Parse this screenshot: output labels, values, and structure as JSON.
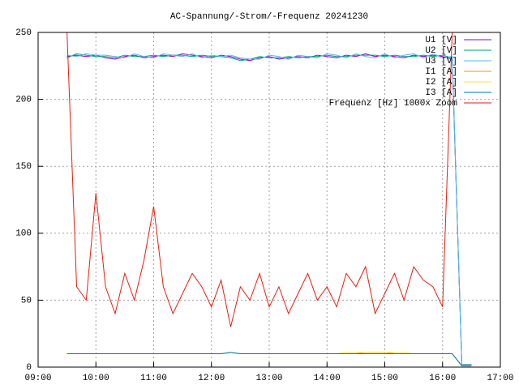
{
  "chart_data": {
    "type": "line",
    "title": "AC-Spannung/-Strom/-Frequenz 20241230",
    "x": [
      9.5,
      9.667,
      9.833,
      10,
      10.167,
      10.333,
      10.5,
      10.667,
      10.833,
      11,
      11.167,
      11.333,
      11.5,
      11.667,
      11.833,
      12,
      12.167,
      12.333,
      12.5,
      12.667,
      12.833,
      13,
      13.167,
      13.333,
      13.5,
      13.667,
      13.833,
      14,
      14.167,
      14.333,
      14.5,
      14.667,
      14.833,
      15,
      15.167,
      15.333,
      15.5,
      15.667,
      15.833,
      16,
      16.167,
      16.333,
      16.5
    ],
    "series": [
      {
        "name": "U1 [V]",
        "color": "#9400d3",
        "values": [
          232,
          233,
          232,
          233,
          231,
          230,
          232,
          233,
          231,
          232,
          233,
          232,
          234,
          233,
          232,
          231,
          233,
          232,
          230,
          229,
          231,
          232,
          230,
          231,
          232,
          231,
          233,
          232,
          231,
          233,
          232,
          234,
          232,
          233,
          232,
          231,
          233,
          232,
          233,
          232,
          230,
          2,
          2
        ]
      },
      {
        "name": "U2 [V]",
        "color": "#009e73",
        "values": [
          231,
          234,
          233,
          232,
          232,
          231,
          233,
          232,
          232,
          233,
          232,
          233,
          233,
          232,
          233,
          232,
          232,
          231,
          229,
          230,
          232,
          231,
          231,
          232,
          231,
          232,
          232,
          233,
          232,
          232,
          233,
          233,
          233,
          232,
          233,
          232,
          232,
          233,
          232,
          233,
          231,
          2,
          2
        ]
      },
      {
        "name": "U3 [V]",
        "color": "#56b4e9",
        "values": [
          233,
          232,
          234,
          233,
          233,
          232,
          231,
          234,
          232,
          231,
          234,
          233,
          232,
          234,
          231,
          233,
          232,
          233,
          231,
          230,
          230,
          233,
          232,
          230,
          233,
          232,
          231,
          234,
          233,
          231,
          234,
          232,
          231,
          234,
          231,
          233,
          234,
          231,
          234,
          231,
          232,
          2,
          2
        ]
      },
      {
        "name": "I1 [A]",
        "color": "#e69f00",
        "values": [
          10,
          10,
          10,
          10,
          10,
          10,
          10,
          10,
          10,
          10,
          10,
          10,
          10,
          10,
          10,
          10,
          10,
          11,
          10,
          10,
          10,
          10,
          10,
          10,
          10,
          10,
          10,
          10,
          10,
          10,
          10,
          11,
          11,
          11,
          10,
          10,
          10,
          10,
          10,
          10,
          10,
          1,
          1
        ]
      },
      {
        "name": "I2 [A]",
        "color": "#f0e442",
        "values": [
          10,
          10,
          10,
          10,
          10,
          10,
          10,
          10,
          10,
          10,
          10,
          10,
          10,
          10,
          10,
          10,
          10,
          11,
          10,
          10,
          10,
          10,
          10,
          10,
          10,
          10,
          10,
          10,
          10,
          11,
          11,
          11,
          11,
          11,
          11,
          11,
          10,
          10,
          10,
          10,
          10,
          1,
          1
        ]
      },
      {
        "name": "I3 [A]",
        "color": "#0072b2",
        "values": [
          10,
          10,
          10,
          10,
          10,
          10,
          10,
          10,
          10,
          10,
          10,
          10,
          10,
          10,
          10,
          10,
          10,
          11,
          10,
          10,
          10,
          10,
          10,
          10,
          10,
          10,
          10,
          10,
          10,
          10,
          10,
          10,
          10,
          10,
          10,
          10,
          10,
          10,
          10,
          10,
          10,
          1,
          1
        ]
      },
      {
        "name": "Frequenz [Hz] 1000x Zoom",
        "color": "#e51e10",
        "values": [
          250,
          60,
          50,
          130,
          60,
          40,
          70,
          50,
          80,
          120,
          60,
          40,
          55,
          70,
          60,
          45,
          65,
          30,
          60,
          50,
          70,
          45,
          60,
          40,
          55,
          70,
          50,
          60,
          45,
          70,
          60,
          75,
          40,
          55,
          70,
          50,
          75,
          65,
          60,
          45,
          250,
          null,
          null
        ]
      }
    ],
    "xlim": [
      9,
      17
    ],
    "xticks": [
      {
        "value": 9,
        "label": "09:00"
      },
      {
        "value": 10,
        "label": "10:00"
      },
      {
        "value": 11,
        "label": "11:00"
      },
      {
        "value": 12,
        "label": "12:00"
      },
      {
        "value": 13,
        "label": "13:00"
      },
      {
        "value": 14,
        "label": "14:00"
      },
      {
        "value": 15,
        "label": "15:00"
      },
      {
        "value": 16,
        "label": "16:00"
      },
      {
        "value": 17,
        "label": "17:00"
      }
    ],
    "ylim": [
      0,
      250
    ],
    "yticks": [
      0,
      50,
      100,
      150,
      200,
      250
    ],
    "grid": true,
    "legend": "top-right"
  }
}
